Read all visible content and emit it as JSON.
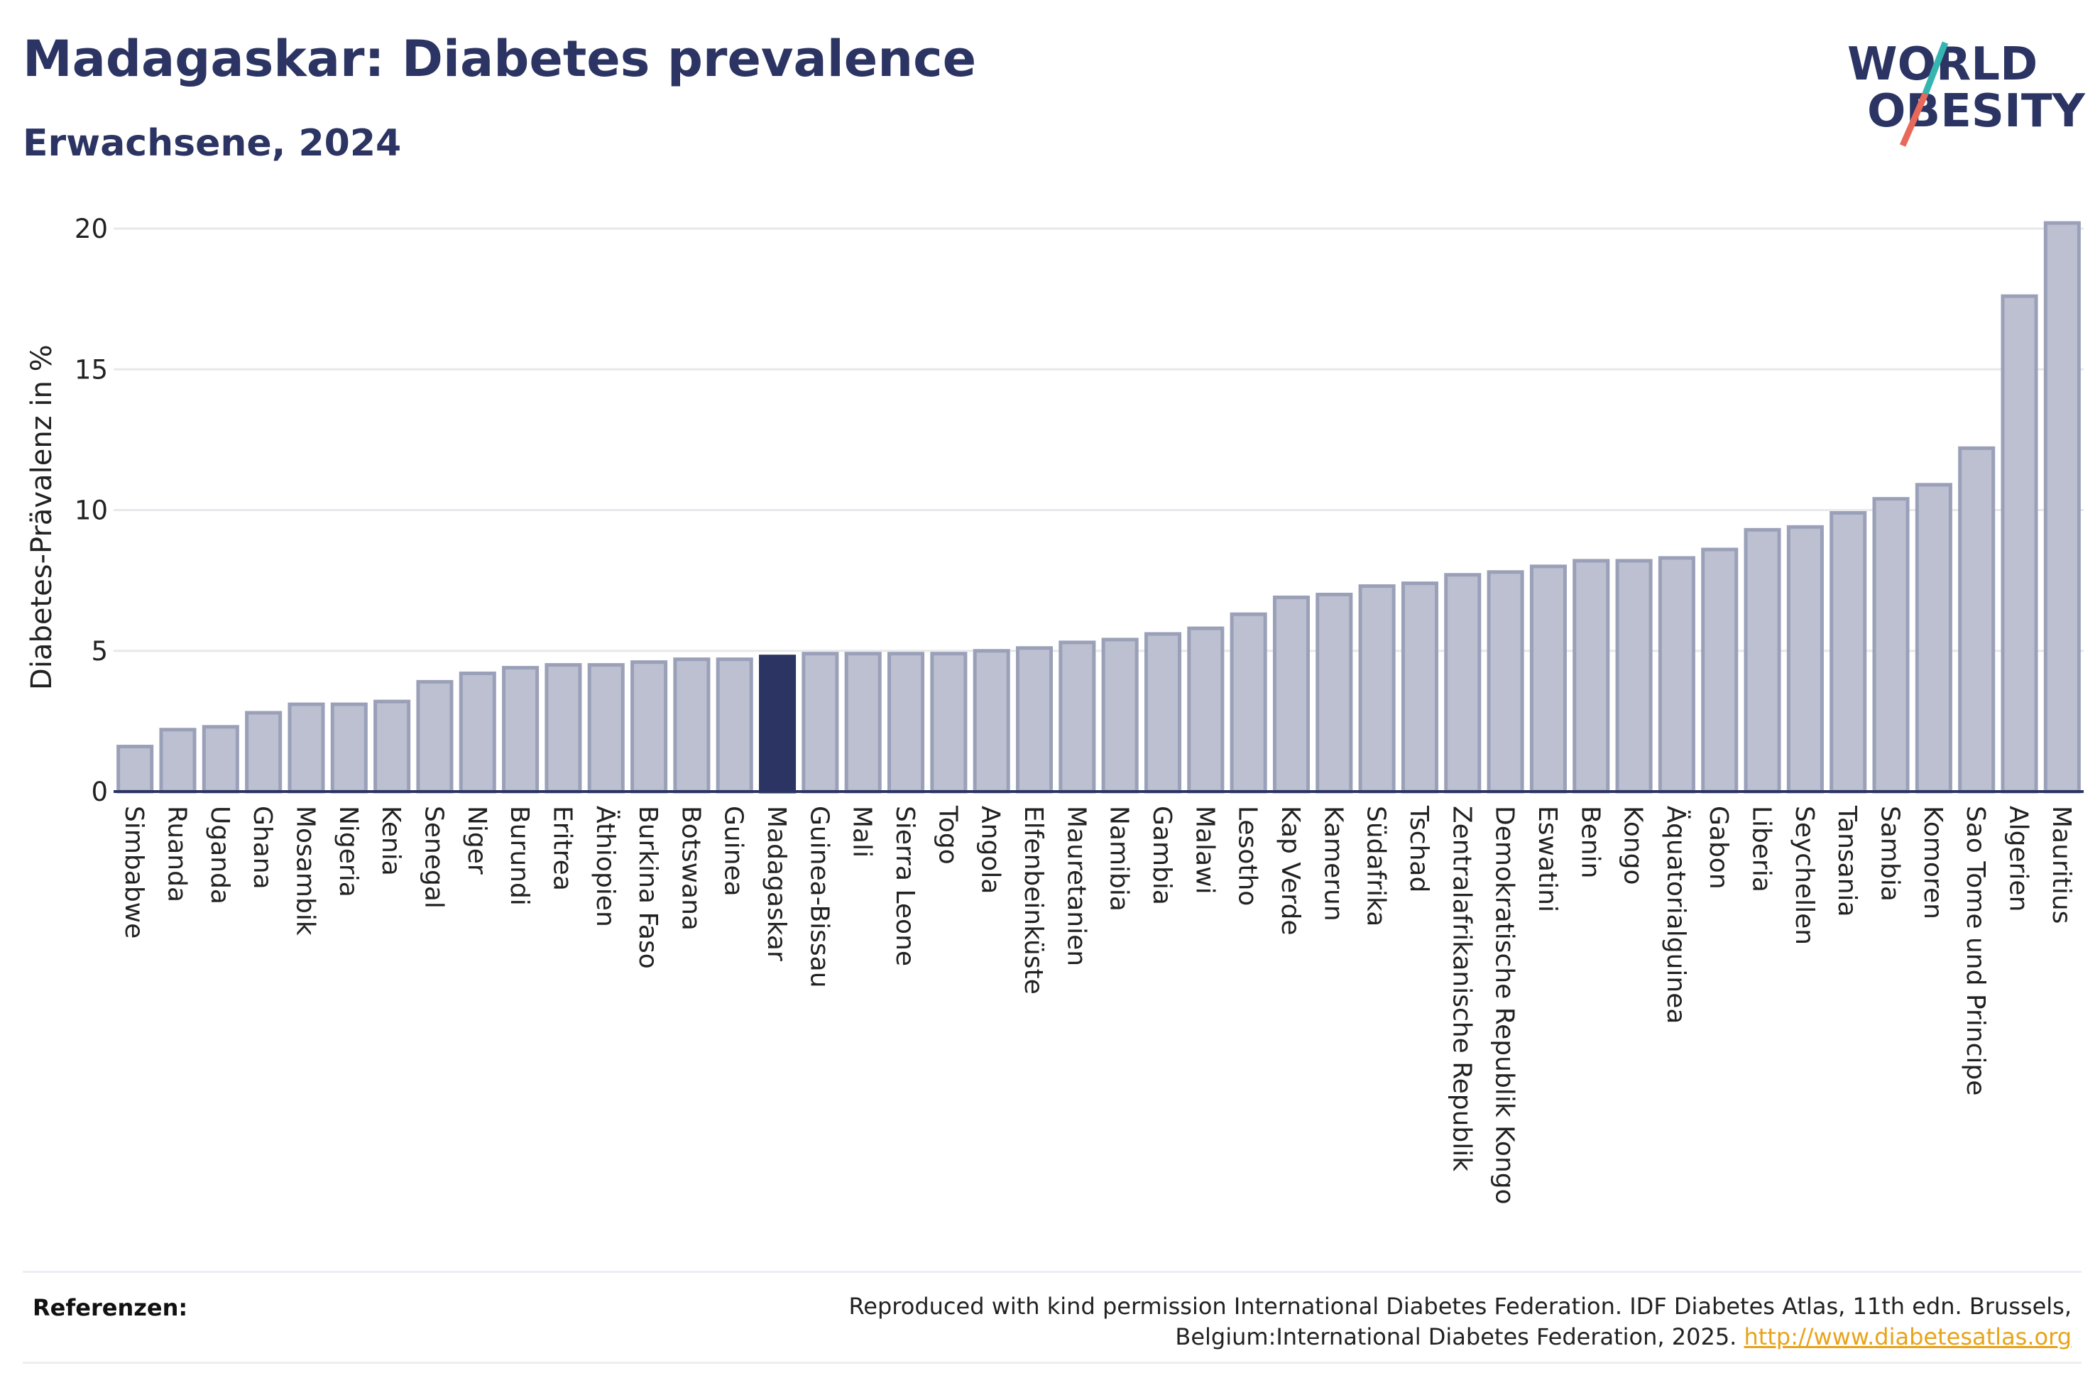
{
  "header": {
    "title": "Madagaskar: Diabetes prevalence",
    "subtitle": "Erwachsene, 2024"
  },
  "logo": {
    "line1": "WORLD",
    "line2": "OBESITY",
    "colors": {
      "text": "#2b3462",
      "slash_teal": "#36b5b0",
      "slash_red": "#e8685a"
    }
  },
  "chart_data": {
    "type": "bar",
    "title": "Madagaskar: Diabetes prevalence",
    "subtitle": "Erwachsene, 2024",
    "xlabel": "",
    "ylabel": "Diabetes-Prävalenz in %",
    "ylim": [
      0,
      21
    ],
    "yticks": [
      0,
      5,
      10,
      15,
      20
    ],
    "grid": true,
    "highlight": "Madagaskar",
    "colors": {
      "bar": "#bcc0d0",
      "bar_border": "#9aa0b8",
      "highlight": "#2b3462",
      "grid": "#e8e8ec",
      "axis": "#2b3462"
    },
    "categories": [
      "Simbabwe",
      "Ruanda",
      "Uganda",
      "Ghana",
      "Mosambik",
      "Nigeria",
      "Kenia",
      "Senegal",
      "Niger",
      "Burundi",
      "Eritrea",
      "Äthiopien",
      "Burkina Faso",
      "Botswana",
      "Guinea",
      "Madagaskar",
      "Guinea-Bissau",
      "Mali",
      "Sierra Leone",
      "Togo",
      "Angola",
      "Elfenbeinküste",
      "Mauretanien",
      "Namibia",
      "Gambia",
      "Malawi",
      "Lesotho",
      "Kap Verde",
      "Kamerun",
      "Südafrika",
      "Tschad",
      "Zentralafrikanische Republik",
      "Demokratische Republik Kongo",
      "Eswatini",
      "Benin",
      "Kongo",
      "Äquatorialguinea",
      "Gabon",
      "Liberia",
      "Seychellen",
      "Tansania",
      "Sambia",
      "Komoren",
      "Sao Tome und Principe",
      "Algerien",
      "Mauritius"
    ],
    "values": [
      1.6,
      2.2,
      2.3,
      2.8,
      3.1,
      3.1,
      3.2,
      3.9,
      4.2,
      4.4,
      4.5,
      4.5,
      4.6,
      4.7,
      4.7,
      4.8,
      4.9,
      4.9,
      4.9,
      4.9,
      5.0,
      5.1,
      5.3,
      5.4,
      5.6,
      5.8,
      6.3,
      6.9,
      7.0,
      7.3,
      7.4,
      7.7,
      7.8,
      8.0,
      8.2,
      8.2,
      8.3,
      8.6,
      9.3,
      9.4,
      9.9,
      10.4,
      10.9,
      12.2,
      17.6,
      20.2
    ]
  },
  "references": {
    "label": "Referenzen:",
    "text": "Reproduced with kind permission International Diabetes Federation. IDF Diabetes Atlas, 11th edn. Brussels, Belgium:International Diabetes Federation, 2025.",
    "link": "http://www.diabetesatlas.org"
  }
}
